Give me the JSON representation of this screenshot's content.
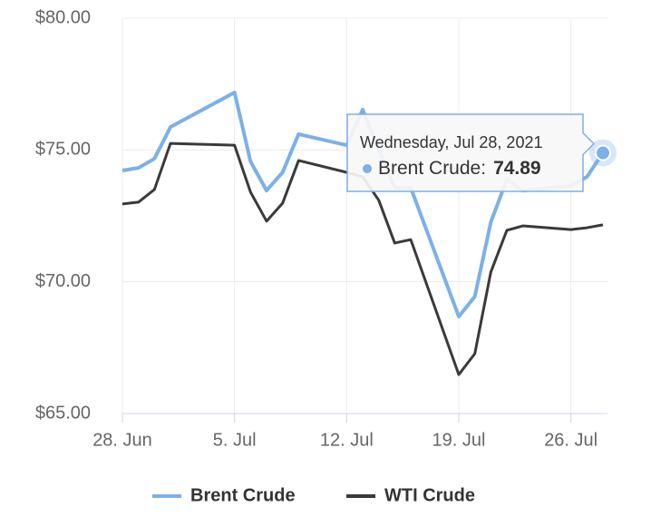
{
  "chart_data": {
    "type": "line",
    "x": [
      "2021-06-28",
      "2021-06-29",
      "2021-06-30",
      "2021-07-01",
      "2021-07-05",
      "2021-07-06",
      "2021-07-07",
      "2021-07-08",
      "2021-07-09",
      "2021-07-12",
      "2021-07-13",
      "2021-07-14",
      "2021-07-15",
      "2021-07-16",
      "2021-07-19",
      "2021-07-20",
      "2021-07-21",
      "2021-07-22",
      "2021-07-23",
      "2021-07-26",
      "2021-07-27",
      "2021-07-28"
    ],
    "series": [
      {
        "name": "Brent Crude",
        "color": "#7cb0e6",
        "values": [
          74.22,
          74.32,
          74.67,
          75.87,
          77.18,
          74.56,
          73.46,
          74.15,
          75.6,
          75.18,
          76.53,
          75.0,
          73.57,
          73.57,
          68.68,
          69.44,
          72.26,
          73.88,
          73.46,
          73.64,
          73.98,
          74.89
        ]
      },
      {
        "name": "WTI Crude",
        "color": "#3a3a3a",
        "values": [
          72.95,
          73.02,
          73.5,
          75.25,
          75.18,
          73.4,
          72.3,
          72.98,
          74.6,
          74.15,
          73.98,
          73.1,
          71.47,
          71.6,
          66.48,
          67.27,
          70.37,
          71.95,
          72.12,
          71.98,
          72.05,
          72.16
        ]
      }
    ],
    "xlim": [
      "2021-06-28",
      "2021-07-28"
    ],
    "xticks": [
      {
        "value": "2021-06-28",
        "label": "28. Jun"
      },
      {
        "value": "2021-07-05",
        "label": "5. Jul"
      },
      {
        "value": "2021-07-12",
        "label": "12. Jul"
      },
      {
        "value": "2021-07-19",
        "label": "19. Jul"
      },
      {
        "value": "2021-07-26",
        "label": "26. Jul"
      }
    ],
    "ylim": [
      65,
      80
    ],
    "yticks": [
      {
        "value": 65,
        "label": "$65.00"
      },
      {
        "value": 70,
        "label": "$70.00"
      },
      {
        "value": 75,
        "label": "$75.00"
      },
      {
        "value": 80,
        "label": "$80.00"
      }
    ],
    "grid": true,
    "legend": "bottom",
    "tooltip": {
      "title": "Wednesday, Jul 28, 2021",
      "label": "Brent Crude:"
    }
  }
}
